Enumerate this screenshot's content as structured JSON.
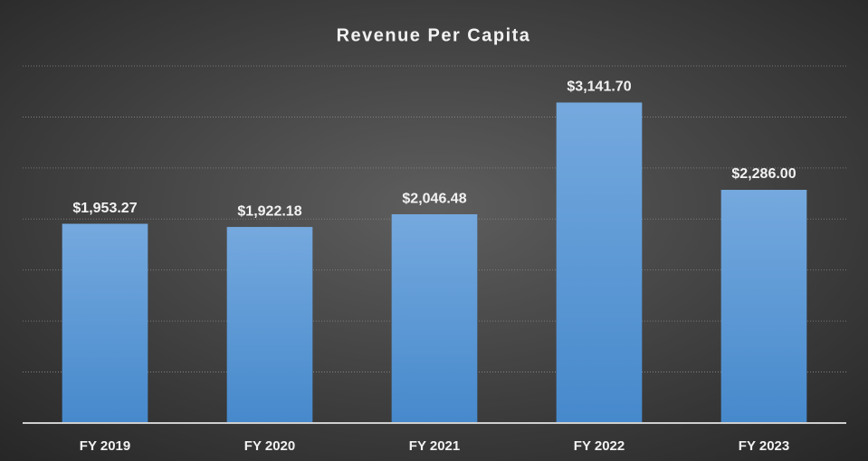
{
  "chart_data": {
    "type": "bar",
    "title": "Revenue Per Capita",
    "categories": [
      "FY 2019",
      "FY 2020",
      "FY 2021",
      "FY 2022",
      "FY 2023"
    ],
    "values": [
      1953.27,
      1922.18,
      2046.48,
      3141.7,
      2286.0
    ],
    "value_labels": [
      "$1,953.27",
      "$1,922.18",
      "$2,046.48",
      "$3,141.70",
      "$2,286.00"
    ],
    "color": "#5b9bd5",
    "ylim": [
      0,
      3500
    ],
    "yticks": [
      0,
      500,
      1000,
      1500,
      2000,
      2500,
      3000,
      3500
    ],
    "grid": true
  }
}
